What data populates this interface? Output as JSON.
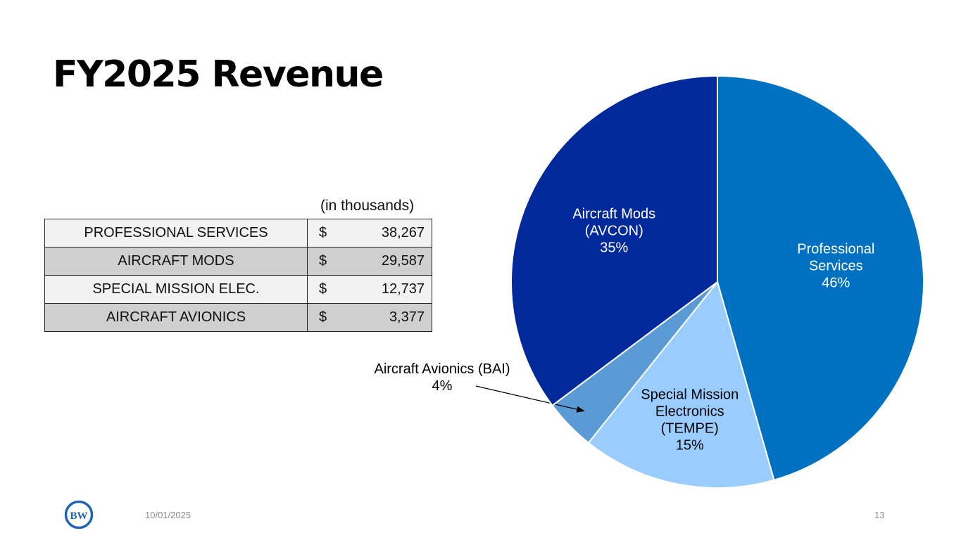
{
  "slide": {
    "title": "FY2025 Revenue",
    "units_note": "(in thousands)",
    "date": "10/01/2025",
    "page_number": "13",
    "logo_text": "BW"
  },
  "revenue_table": {
    "rows": [
      {
        "name": "PROFESSIONAL SERVICES",
        "currency": "$",
        "value": "38,267"
      },
      {
        "name": "AIRCRAFT MODS",
        "currency": "$",
        "value": "29,587"
      },
      {
        "name": "SPECIAL MISSION ELEC.",
        "currency": "$",
        "value": "12,737"
      },
      {
        "name": "AIRCRAFT AVIONICS",
        "currency": "$",
        "value": "3,377"
      }
    ]
  },
  "chart_data": {
    "type": "pie",
    "start_angle_deg": 0,
    "direction": "clockwise",
    "slices": [
      {
        "lines": [
          "Professional",
          "Services",
          "46%"
        ],
        "value": 38267,
        "percent": 46,
        "color": "#0070c0",
        "label_color": "#ffffff"
      },
      {
        "lines": [
          "Special Mission",
          "Electronics",
          "(TEMPE)",
          "15%"
        ],
        "value": 12737,
        "percent": 15,
        "color": "#99ccff",
        "label_color": "#000000"
      },
      {
        "lines": [
          "Aircraft Avionics (BAI)",
          "4%"
        ],
        "value": 3377,
        "percent": 4,
        "color": "#5b9bd5",
        "label_color": "#000000",
        "label_outside": true
      },
      {
        "lines": [
          "Aircraft Mods",
          "(AVCON)",
          "35%"
        ],
        "value": 29587,
        "percent": 35,
        "color": "#00299b",
        "label_color": "#ffffff"
      }
    ]
  }
}
